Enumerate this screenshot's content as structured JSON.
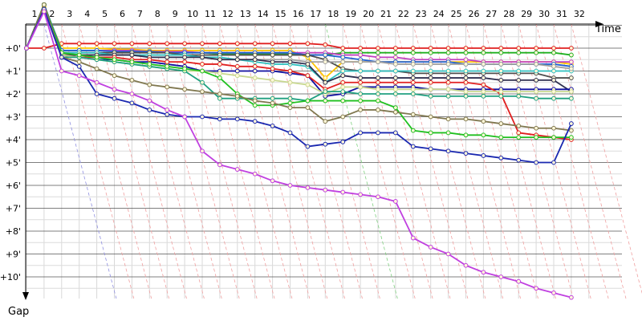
{
  "chart_data": {
    "type": "line",
    "title": "",
    "xlabel": "Time",
    "ylabel": "Gap",
    "x": [
      1,
      2,
      3,
      4,
      5,
      6,
      7,
      8,
      9,
      10,
      11,
      12,
      13,
      14,
      15,
      16,
      17,
      18,
      19,
      20,
      21,
      22,
      23,
      24,
      25,
      26,
      27,
      28,
      29,
      30,
      31,
      32
    ],
    "x_tick_labels": [
      "1",
      "2",
      "3",
      "4",
      "5",
      "6",
      "7",
      "8",
      "9",
      "10",
      "11",
      "12",
      "13",
      "14",
      "15",
      "16",
      "17",
      "18",
      "19",
      "20",
      "21",
      "22",
      "23",
      "24",
      "25",
      "26",
      "27",
      "28",
      "29",
      "30",
      "31",
      "32"
    ],
    "y_tick_labels": [
      "+0'",
      "+1'",
      "+2'",
      "+3'",
      "+4'",
      "+5'",
      "+6'",
      "+7'",
      "+8'",
      "+9'",
      "+10'"
    ],
    "y_ticks": [
      0,
      1,
      2,
      3,
      4,
      5,
      6,
      7,
      8,
      9,
      10
    ],
    "ylim": [
      0,
      11
    ],
    "y_inverted": true,
    "grid": true,
    "legend": "none",
    "series": [
      {
        "color": "#e02020",
        "values": [
          0,
          0,
          -0.2,
          -0.2,
          -0.2,
          -0.2,
          -0.2,
          -0.2,
          -0.2,
          -0.2,
          -0.2,
          -0.2,
          -0.2,
          -0.2,
          -0.2,
          -0.2,
          -0.2,
          -0.15,
          0,
          0,
          0,
          0,
          0,
          0,
          0,
          0,
          0,
          0,
          0,
          0,
          0,
          0
        ]
      },
      {
        "color": "#ffc400",
        "values": [
          0,
          -1.8,
          0,
          0,
          0,
          0.05,
          0.05,
          0.1,
          0.1,
          0.1,
          0.1,
          0.1,
          0.1,
          0.1,
          0.1,
          0.1,
          0.4,
          1.3,
          0.6,
          0.6,
          0.6,
          0.6,
          0.6,
          0.6,
          0.6,
          0.6,
          0.6,
          0.6,
          0.6,
          0.6,
          0.6,
          0.7
        ]
      },
      {
        "color": "#20b020",
        "values": [
          0,
          -1.9,
          0.1,
          0.1,
          0.1,
          0.1,
          0.15,
          0.15,
          0.2,
          0.2,
          0.2,
          0.25,
          0.25,
          0.25,
          0.25,
          0.25,
          0.3,
          0.3,
          0.2,
          0.2,
          0.2,
          0.2,
          0.2,
          0.2,
          0.2,
          0.2,
          0.2,
          0.2,
          0.2,
          0.2,
          0.2,
          0.3
        ]
      },
      {
        "color": "#c040c0",
        "values": [
          0,
          -1.9,
          0.1,
          0.1,
          0.1,
          0.1,
          0.1,
          0.15,
          0.15,
          0.15,
          0.2,
          0.2,
          0.2,
          0.2,
          0.2,
          0.2,
          0.2,
          0.2,
          0.3,
          0.3,
          0.4,
          0.4,
          0.5,
          0.5,
          0.5,
          0.5,
          0.6,
          0.6,
          0.6,
          0.6,
          0.6,
          0.6
        ]
      },
      {
        "color": "#2060d0",
        "values": [
          0,
          -1.9,
          0.1,
          0.1,
          0.1,
          0.15,
          0.15,
          0.15,
          0.2,
          0.2,
          0.2,
          0.2,
          0.2,
          0.2,
          0.2,
          0.2,
          0.3,
          0.3,
          0.4,
          0.5,
          0.6,
          0.6,
          0.6,
          0.6,
          0.6,
          0.7,
          0.7,
          0.7,
          0.7,
          0.7,
          0.7,
          0.8
        ]
      },
      {
        "color": "#505050",
        "values": [
          0,
          -1.9,
          0.2,
          0.2,
          0.2,
          0.2,
          0.2,
          0.2,
          0.2,
          0.3,
          0.3,
          0.3,
          0.3,
          0.3,
          0.3,
          0.3,
          0.3,
          0.5,
          0.9,
          1.0,
          1.0,
          1.0,
          1.1,
          1.1,
          1.1,
          1.1,
          1.1,
          1.1,
          1.1,
          1.1,
          1.3,
          1.3
        ]
      },
      {
        "color": "#30c0c0",
        "values": [
          0,
          -1.9,
          0.2,
          0.2,
          0.2,
          0.3,
          0.3,
          0.3,
          0.3,
          0.3,
          0.4,
          0.4,
          0.5,
          0.6,
          0.7,
          0.7,
          0.8,
          1.5,
          1.0,
          1.0,
          1.0,
          1.0,
          1.0,
          1.0,
          1.0,
          1.0,
          1.0,
          1.0,
          1.0,
          1.0,
          1.0,
          1.0
        ]
      },
      {
        "color": "#a0a0a0",
        "values": [
          0,
          -1.9,
          0.2,
          0.3,
          0.3,
          0.3,
          0.3,
          0.4,
          0.4,
          0.4,
          0.4,
          0.5,
          0.5,
          0.5,
          0.5,
          0.5,
          0.6,
          0.6,
          0.6,
          0.6,
          0.6,
          0.7,
          0.7,
          0.7,
          0.7,
          0.7,
          0.7,
          0.7,
          0.7,
          0.7,
          0.8,
          0.9
        ]
      },
      {
        "color": "#303050",
        "values": [
          0,
          -1.9,
          0.3,
          0.3,
          0.3,
          0.3,
          0.3,
          0.4,
          0.4,
          0.4,
          0.4,
          0.5,
          0.5,
          0.5,
          0.6,
          0.6,
          0.7,
          1.5,
          1.2,
          1.3,
          1.3,
          1.3,
          1.3,
          1.3,
          1.3,
          1.3,
          1.3,
          1.4,
          1.4,
          1.4,
          1.4,
          1.9
        ]
      },
      {
        "color": "#1010a0",
        "values": [
          0,
          -1.9,
          0.3,
          0.4,
          0.5,
          0.5,
          0.6,
          0.6,
          0.7,
          0.8,
          1.0,
          1.0,
          1.0,
          1.0,
          1.0,
          1.1,
          1.2,
          2.1,
          2.0,
          1.7,
          1.7,
          1.7,
          1.7,
          1.8,
          1.8,
          1.8,
          1.8,
          1.8,
          1.8,
          1.8,
          1.8,
          1.8
        ]
      },
      {
        "color": "#e02020",
        "values": [
          0,
          -1.9,
          0.3,
          0.4,
          0.4,
          0.4,
          0.5,
          0.5,
          0.6,
          0.6,
          0.7,
          0.7,
          0.8,
          0.8,
          0.9,
          1.0,
          1.2,
          1.8,
          1.5,
          1.5,
          1.5,
          1.5,
          1.5,
          1.5,
          1.5,
          1.5,
          1.6,
          2.0,
          3.7,
          3.8,
          3.9,
          4.0
        ]
      },
      {
        "color": "#c8d890",
        "values": [
          0,
          -1.9,
          0.3,
          0.4,
          0.5,
          0.6,
          0.7,
          0.8,
          0.9,
          1.0,
          1.0,
          1.1,
          1.2,
          1.3,
          1.4,
          1.5,
          1.6,
          2.0,
          1.7,
          1.7,
          1.8,
          1.8,
          1.8,
          1.8,
          1.8,
          1.9,
          1.9,
          1.9,
          1.9,
          1.9,
          1.9,
          1.9
        ]
      },
      {
        "color": "#20a080",
        "values": [
          0,
          -1.9,
          0.4,
          0.4,
          0.5,
          0.6,
          0.7,
          0.8,
          0.9,
          1.0,
          1.5,
          2.2,
          2.2,
          2.2,
          2.2,
          2.2,
          2.3,
          1.9,
          1.9,
          2.0,
          2.0,
          2.0,
          2.0,
          2.1,
          2.1,
          2.1,
          2.1,
          2.1,
          2.1,
          2.2,
          2.2,
          2.2
        ]
      },
      {
        "color": "#20c020",
        "values": [
          0,
          -1.9,
          0.2,
          0.3,
          0.4,
          0.5,
          0.6,
          0.7,
          0.8,
          0.9,
          1.0,
          1.3,
          2.0,
          2.5,
          2.5,
          2.4,
          2.3,
          2.3,
          2.3,
          2.3,
          2.3,
          2.6,
          3.6,
          3.7,
          3.7,
          3.8,
          3.8,
          3.9,
          3.9,
          3.9,
          3.9,
          3.9
        ]
      },
      {
        "color": "#807850",
        "values": [
          0,
          -1.9,
          0.4,
          0.6,
          0.9,
          1.2,
          1.4,
          1.6,
          1.7,
          1.8,
          1.9,
          2.0,
          2.1,
          2.3,
          2.4,
          2.6,
          2.6,
          3.2,
          3.0,
          2.7,
          2.7,
          2.8,
          2.9,
          3.0,
          3.1,
          3.1,
          3.2,
          3.3,
          3.4,
          3.5,
          3.5,
          3.6
        ]
      },
      {
        "color": "#1a28b0",
        "values": [
          0,
          -1.7,
          0.4,
          0.8,
          2.0,
          2.2,
          2.4,
          2.7,
          2.9,
          3.0,
          3.0,
          3.1,
          3.1,
          3.2,
          3.4,
          3.7,
          4.3,
          4.2,
          4.1,
          3.7,
          3.7,
          3.7,
          4.3,
          4.4,
          4.5,
          4.6,
          4.7,
          4.8,
          4.9,
          5.0,
          5.0,
          3.3
        ]
      },
      {
        "color": "#c040e0",
        "values": [
          0,
          -1.6,
          1.0,
          1.2,
          1.5,
          1.8,
          2.0,
          2.3,
          2.7,
          3.0,
          4.5,
          5.1,
          5.3,
          5.5,
          5.8,
          6.0,
          6.1,
          6.2,
          6.3,
          6.4,
          6.5,
          6.7,
          8.3,
          8.7,
          9.0,
          9.5,
          9.8,
          10.0,
          10.2,
          10.5,
          10.7,
          10.9
        ]
      }
    ]
  }
}
